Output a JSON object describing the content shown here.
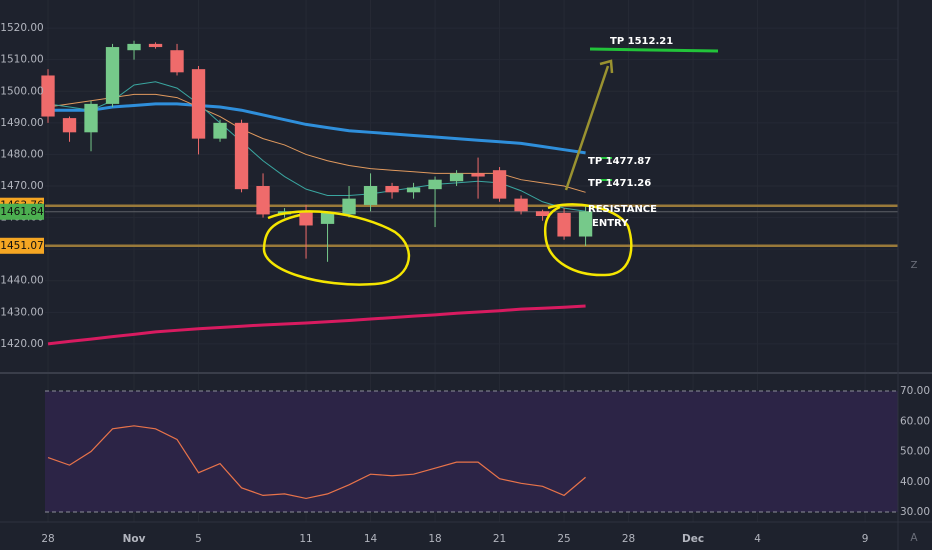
{
  "chart_data": [
    {
      "type": "candlestick",
      "ylim": [
        1411.1,
        1528.9
      ],
      "yticks": [
        {
          "value": 1420,
          "label": "1420.00"
        },
        {
          "value": 1430,
          "label": "1430.00"
        },
        {
          "value": 1440,
          "label": "1440.00"
        },
        {
          "value": 1450,
          "label": "1450.00"
        },
        {
          "value": 1460,
          "label": "1460.00"
        },
        {
          "value": 1470,
          "label": "1470.00"
        },
        {
          "value": 1480,
          "label": "1480.00"
        },
        {
          "value": 1490,
          "label": "1490.00"
        },
        {
          "value": 1500,
          "label": "1500.00"
        },
        {
          "value": 1510,
          "label": "1510.00"
        },
        {
          "value": 1520,
          "label": "1520.00"
        }
      ],
      "xlim": [
        -2.233,
        39.53
      ],
      "xticks": [
        {
          "value": 0,
          "label": "28"
        },
        {
          "value": 4,
          "label": "Nov"
        },
        {
          "value": 7,
          "label": "5"
        },
        {
          "value": 12,
          "label": "11"
        },
        {
          "value": 15,
          "label": "14"
        },
        {
          "value": 18,
          "label": "18"
        },
        {
          "value": 21,
          "label": "21"
        },
        {
          "value": 24,
          "label": "25"
        },
        {
          "value": 27,
          "label": "28"
        },
        {
          "value": 30,
          "label": "Dec"
        },
        {
          "value": 33,
          "label": "4"
        },
        {
          "value": 38,
          "label": "9"
        }
      ],
      "up_color": "#76c98a",
      "down_color": "#ef6b6b",
      "open": [
        1505,
        1491.5,
        1487,
        1496,
        1513,
        1515,
        1513,
        1507,
        1485,
        1490,
        1470,
        1461,
        1462,
        1458,
        1461,
        1464,
        1470,
        1468,
        1469,
        1471.5,
        1474,
        1475,
        1466,
        1462,
        1461.5,
        1454
      ],
      "high": [
        1507,
        1492,
        1497,
        1515,
        1516,
        1515.5,
        1515,
        1508,
        1491,
        1491,
        1474,
        1463,
        1464,
        1462,
        1470,
        1474,
        1471,
        1471,
        1473,
        1475,
        1479,
        1476,
        1467,
        1462.5,
        1463,
        1464
      ],
      "low": [
        1490,
        1484,
        1481,
        1495,
        1510,
        1513.5,
        1505,
        1480,
        1484,
        1468,
        1460,
        1460,
        1447,
        1446,
        1460,
        1462,
        1466,
        1466,
        1457,
        1470,
        1466,
        1465,
        1461,
        1459,
        1453,
        1451
      ],
      "close": [
        1492,
        1487,
        1496,
        1514,
        1515,
        1514,
        1506,
        1485,
        1490,
        1469,
        1461,
        1462,
        1457.5,
        1461.5,
        1466,
        1470,
        1468,
        1469.5,
        1472,
        1474,
        1473,
        1466,
        1462,
        1460.5,
        1454,
        1462
      ],
      "series": [
        {
          "color": "#2f8fdb",
          "width": 3,
          "values": [
            1494,
            1494,
            1494,
            1495,
            1495.5,
            1496,
            1496,
            1495.5,
            1495,
            1494,
            1492.5,
            1491,
            1489.5,
            1488.5,
            1487.5,
            1487,
            1486.5,
            1486,
            1485.5,
            1485,
            1484.5,
            1484,
            1483.5,
            1482.5,
            1481.5,
            1480.5
          ]
        },
        {
          "color": "#d81b60",
          "width": 3,
          "values": [
            1420,
            1420.8,
            1421.5,
            1422.3,
            1423,
            1423.8,
            1424.3,
            1424.8,
            1425.2,
            1425.6,
            1426,
            1426.3,
            1426.6,
            1427,
            1427.4,
            1427.9,
            1428.3,
            1428.8,
            1429.2,
            1429.7,
            1430.1,
            1430.5,
            1431,
            1431.3,
            1431.6,
            1432
          ]
        },
        {
          "color": "#e0995e",
          "width": 1,
          "values": [
            1495,
            1496,
            1497,
            1498,
            1499,
            1499,
            1498,
            1495,
            1492,
            1488,
            1485,
            1483,
            1480,
            1478,
            1476.5,
            1475.5,
            1475,
            1474.5,
            1474,
            1474,
            1474,
            1474,
            1472,
            1471,
            1470,
            1468
          ]
        },
        {
          "color": "#3aa6a0",
          "width": 1,
          "values": [
            1496,
            1495,
            1494,
            1497,
            1502,
            1503,
            1501,
            1496,
            1490,
            1484,
            1478,
            1473,
            1469,
            1467,
            1467,
            1467.5,
            1468.5,
            1469.5,
            1470.5,
            1471,
            1471.5,
            1471,
            1468.5,
            1465,
            1463,
            1462
          ]
        }
      ],
      "levels": [
        {
          "value": 1463.76,
          "color": "#f5a623",
          "line": "#9a7a3a"
        },
        {
          "value": 1461.84,
          "color": "#4caf50",
          "line": "#5d6066"
        },
        {
          "value": 1451.07,
          "color": "#f5a623",
          "line": "#9a7a3a"
        }
      ],
      "annotations": [
        "TP 1512.21",
        "TP 1477.87",
        "TP 1471.26",
        "RESISTANCE",
        "ENTRY"
      ]
    },
    {
      "type": "line",
      "ylim": [
        26.7,
        75.3
      ],
      "yticks": [
        {
          "value": 30,
          "label": "30.00"
        },
        {
          "value": 40,
          "label": "40.00"
        },
        {
          "value": 50,
          "label": "50.00"
        },
        {
          "value": 60,
          "label": "60.00"
        },
        {
          "value": 70,
          "label": "70.00"
        }
      ],
      "bands": [
        30,
        70
      ],
      "color": "#e8734a",
      "values": [
        48,
        45.5,
        50,
        57.5,
        58.5,
        57.5,
        54,
        43,
        46,
        38,
        35.5,
        36,
        34.5,
        36,
        39,
        42.5,
        42,
        42.5,
        44.5,
        46.5,
        46.5,
        41,
        39.5,
        38.5,
        35.5,
        41.5
      ]
    }
  ],
  "scale_button": "A"
}
